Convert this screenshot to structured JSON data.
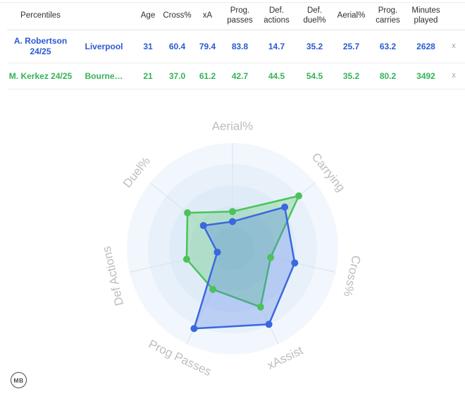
{
  "table": {
    "header": {
      "percentiles": "Percentiles",
      "columns": [
        "Age",
        "Cross%",
        "xA",
        "Prog. passes",
        "Def. actions",
        "Def. duel%",
        "Aerial%",
        "Prog. carries",
        "Minutes played"
      ]
    },
    "rows": [
      {
        "player": "A. Robertson 24/25",
        "team": "Liverpool",
        "values": [
          "31",
          "60.4",
          "79.4",
          "83.8",
          "14.7",
          "35.2",
          "25.7",
          "63.2",
          "2628"
        ],
        "remove": "x"
      },
      {
        "player": "M. Kerkez 24/25",
        "team": "Bourne…",
        "values": [
          "21",
          "37.0",
          "61.2",
          "42.7",
          "44.5",
          "54.5",
          "35.2",
          "80.2",
          "3492"
        ],
        "remove": "x"
      }
    ]
  },
  "chart_data": {
    "type": "radar",
    "categories": [
      "Aerial%",
      "Carrying",
      "Cross%",
      "xAssist",
      "Prog Passes",
      "Def Actions",
      "Duel%"
    ],
    "rmax": 100,
    "grid": true,
    "legend": "none",
    "series": [
      {
        "name": "A. Robertson 24/25",
        "color": "#3a67e0",
        "fill": "rgba(72,118,235,0.28)",
        "values": [
          25.7,
          63.2,
          60.4,
          79.4,
          83.8,
          14.7,
          35.2
        ]
      },
      {
        "name": "M. Kerkez 24/25",
        "color": "#4cc25b",
        "fill": "rgba(92,201,105,0.32)",
        "values": [
          35.2,
          80.2,
          37.0,
          61.2,
          42.7,
          44.5,
          54.5
        ]
      }
    ]
  },
  "colors": {
    "row_blue": "#2a5ad2",
    "row_green": "#35b257",
    "axis_label": "#bdbdbd",
    "series_blue": "#3a67e0",
    "series_green": "#4cc25b"
  },
  "badge": {
    "label": "MB"
  }
}
